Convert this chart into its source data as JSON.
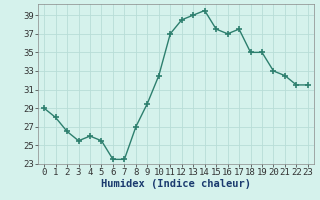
{
  "x": [
    0,
    1,
    2,
    3,
    4,
    5,
    6,
    7,
    8,
    9,
    10,
    11,
    12,
    13,
    14,
    15,
    16,
    17,
    18,
    19,
    20,
    21,
    22,
    23
  ],
  "y": [
    29,
    28,
    26.5,
    25.5,
    26,
    25.5,
    23.5,
    23.5,
    27,
    29.5,
    32.5,
    37,
    38.5,
    39,
    39.5,
    37.5,
    37,
    37.5,
    35,
    35,
    33,
    32.5,
    31.5,
    31.5
  ],
  "xlabel": "Humidex (Indice chaleur)",
  "ylim": [
    23,
    40
  ],
  "yticks": [
    23,
    25,
    27,
    29,
    31,
    33,
    35,
    37,
    39
  ],
  "xticks": [
    0,
    1,
    2,
    3,
    4,
    5,
    6,
    7,
    8,
    9,
    10,
    11,
    12,
    13,
    14,
    15,
    16,
    17,
    18,
    19,
    20,
    21,
    22,
    23
  ],
  "line_color": "#2d7f6e",
  "bg_color": "#d5f2ec",
  "grid_color": "#b8ddd7",
  "marker": "+",
  "marker_size": 5,
  "line_width": 1.0,
  "xlabel_fontsize": 7.5,
  "tick_fontsize": 6.5
}
